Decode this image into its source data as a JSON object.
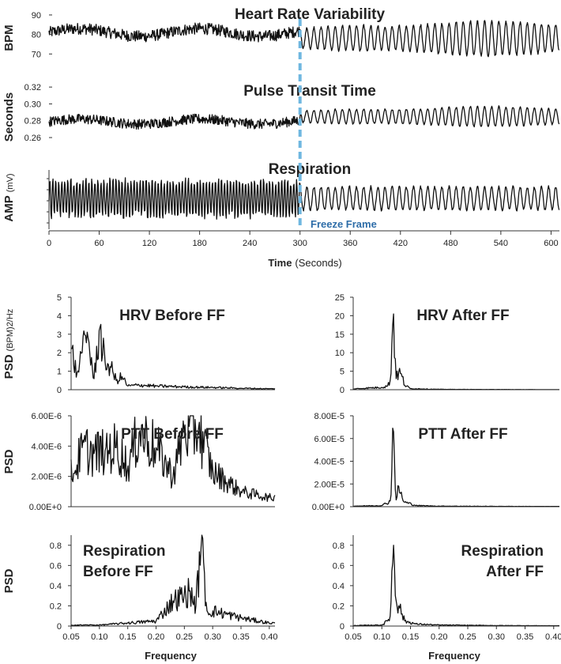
{
  "colors": {
    "trace": "#111111",
    "freeze_line": "#6fb7e0",
    "freeze_label": "#2e6da8",
    "axis": "#333333"
  },
  "time_axis": {
    "label_bold": "Time",
    "label_rest": "(Seconds)",
    "ticks": [
      "0",
      "60",
      "120",
      "180",
      "240",
      "300",
      "360",
      "420",
      "480",
      "540",
      "600"
    ],
    "range": [
      0,
      610
    ]
  },
  "freeze_frame": {
    "label": "Freeze Frame",
    "time": 300
  },
  "chart_data": [
    {
      "id": "hrv_time",
      "type": "line",
      "title": "Heart Rate Variability",
      "ylabel": "BPM",
      "ylim": [
        62,
        92
      ],
      "yticks": [
        "70",
        "80",
        "90"
      ],
      "ytick_values": [
        70,
        80,
        90
      ],
      "xlim": [
        0,
        610
      ],
      "before": {
        "mean": 81,
        "noise": 5,
        "drift_amp": 2
      },
      "after": {
        "mean": 78,
        "amp": 9,
        "period_s": 8.5
      }
    },
    {
      "id": "ptt_time",
      "type": "line",
      "title": "Pulse Transit Time",
      "ylabel": "Seconds",
      "ylim": [
        0.245,
        0.322
      ],
      "yticks": [
        "0.26",
        "0.28",
        "0.30",
        "0.32"
      ],
      "ytick_values": [
        0.26,
        0.28,
        0.3,
        0.32
      ],
      "xlim": [
        0,
        610
      ],
      "before": {
        "mean": 0.279,
        "noise": 0.01,
        "drift_amp": 0.003
      },
      "after": {
        "mean": 0.285,
        "amp": 0.012,
        "period_s": 8.5
      }
    },
    {
      "id": "resp_time",
      "type": "line",
      "title": "Respiration",
      "ylabel": "AMP",
      "ylabel_unit": "(mV)",
      "ylim": [
        -1.2,
        1.2
      ],
      "yticks": [],
      "xlim": [
        0,
        610
      ],
      "before": {
        "amp": 0.9,
        "period_s": 3.6
      },
      "after": {
        "amp": 0.5,
        "period_s": 8.5
      }
    },
    {
      "id": "psd_hrv_before",
      "type": "line",
      "title": "HRV Before FF",
      "ylabel": "PSD",
      "ylabel_unit": "(BPM)2/Hz",
      "xlabel": "",
      "xlim": [
        0.05,
        0.41
      ],
      "ylim": [
        0,
        5
      ],
      "yticks": [
        "0",
        "1",
        "2",
        "3",
        "4",
        "5"
      ],
      "ytick_values": [
        0,
        1,
        2,
        3,
        4,
        5
      ],
      "x": [
        0.05,
        0.06,
        0.07,
        0.08,
        0.09,
        0.1,
        0.11,
        0.12,
        0.13,
        0.14,
        0.15,
        0.17,
        0.2,
        0.25,
        0.3,
        0.35,
        0.4
      ],
      "y": [
        2.2,
        0.9,
        2.0,
        2.8,
        0.6,
        3.2,
        1.5,
        1.2,
        0.5,
        0.7,
        0.2,
        0.25,
        0.2,
        0.15,
        0.12,
        0.08,
        0.05
      ]
    },
    {
      "id": "psd_hrv_after",
      "type": "line",
      "title": "HRV After FF",
      "ylabel": "",
      "xlim": [
        0.05,
        0.41
      ],
      "ylim": [
        0,
        25
      ],
      "yticks": [
        "0",
        "5",
        "10",
        "15",
        "20",
        "25"
      ],
      "ytick_values": [
        0,
        5,
        10,
        15,
        20,
        25
      ],
      "x": [
        0.05,
        0.08,
        0.1,
        0.11,
        0.115,
        0.12,
        0.125,
        0.13,
        0.135,
        0.14,
        0.15,
        0.2,
        0.3,
        0.4
      ],
      "y": [
        0.2,
        0.5,
        0.6,
        1.0,
        2.5,
        20.5,
        3.0,
        4.8,
        3.5,
        1.2,
        0.3,
        0.1,
        0.05,
        0.02
      ]
    },
    {
      "id": "psd_ptt_before",
      "type": "line",
      "title": "PTT Before FF",
      "ylabel": "PSD",
      "xlim": [
        0.05,
        0.41
      ],
      "ylim": [
        0,
        6e-06
      ],
      "yticks": [
        "0.00E+0",
        "2.00E-6",
        "4.00E-6",
        "6.00E-6"
      ],
      "ytick_values": [
        0,
        2e-06,
        4e-06,
        6e-06
      ],
      "x": [
        0.055,
        0.07,
        0.09,
        0.11,
        0.13,
        0.15,
        0.17,
        0.2,
        0.23,
        0.25,
        0.275,
        0.3,
        0.35,
        0.4
      ],
      "y": [
        2.2e-06,
        3.9e-06,
        3.5e-06,
        3.7e-06,
        3.9e-06,
        2.7e-06,
        4.9e-06,
        3.9e-06,
        2e-06,
        5e-06,
        5.2e-06,
        2.3e-06,
        1e-06,
        6e-07
      ]
    },
    {
      "id": "psd_ptt_after",
      "type": "line",
      "title": "PTT After FF",
      "ylabel": "",
      "xlim": [
        0.05,
        0.41
      ],
      "ylim": [
        0,
        8e-05
      ],
      "yticks": [
        "0.00E+0",
        "2.00E-5",
        "4.00E-5",
        "6.00E-5",
        "8.00E-5"
      ],
      "ytick_values": [
        0,
        2e-05,
        4e-05,
        6e-05,
        8e-05
      ],
      "x": [
        0.05,
        0.1,
        0.115,
        0.12,
        0.125,
        0.13,
        0.135,
        0.14,
        0.16,
        0.2,
        0.3,
        0.4
      ],
      "y": [
        5e-07,
        1e-06,
        5e-06,
        6.6e-05,
        6e-06,
        1.8e-05,
        8e-06,
        4e-06,
        1e-06,
        5e-07,
        3e-07,
        2e-07
      ]
    },
    {
      "id": "psd_resp_before",
      "type": "line",
      "title_lines": [
        "Respiration",
        "Before FF"
      ],
      "ylabel": "PSD",
      "xlabel": "Frequency",
      "xlim": [
        0.05,
        0.41
      ],
      "ylim": [
        0,
        0.9
      ],
      "xticks": [
        "0.05",
        "0.10",
        "0.15",
        "0.20",
        "0.25",
        "0.30",
        "0.35",
        "0.40"
      ],
      "xtick_values": [
        0.05,
        0.1,
        0.15,
        0.2,
        0.25,
        0.3,
        0.35,
        0.4
      ],
      "yticks": [
        "0",
        "0.2",
        "0.4",
        "0.6",
        "0.8"
      ],
      "ytick_values": [
        0,
        0.2,
        0.4,
        0.6,
        0.8
      ],
      "x": [
        0.05,
        0.1,
        0.15,
        0.2,
        0.23,
        0.25,
        0.26,
        0.27,
        0.28,
        0.29,
        0.3,
        0.35,
        0.4
      ],
      "y": [
        0.01,
        0.01,
        0.03,
        0.05,
        0.25,
        0.3,
        0.35,
        0.2,
        0.78,
        0.15,
        0.15,
        0.08,
        0.03
      ]
    },
    {
      "id": "psd_resp_after",
      "type": "line",
      "title_lines": [
        "Respiration",
        "After FF"
      ],
      "ylabel": "",
      "xlabel": "Frequency",
      "xlim": [
        0.05,
        0.41
      ],
      "ylim": [
        0,
        0.9
      ],
      "xticks": [
        "0.05",
        "0.10",
        "0.15",
        "0.20",
        "0.25",
        "0.30",
        "0.35",
        "0.40"
      ],
      "xtick_values": [
        0.05,
        0.1,
        0.15,
        0.2,
        0.25,
        0.3,
        0.35,
        0.4
      ],
      "yticks": [
        "0",
        "0.2",
        "0.4",
        "0.6",
        "0.8"
      ],
      "ytick_values": [
        0,
        0.2,
        0.4,
        0.6,
        0.8
      ],
      "x": [
        0.05,
        0.1,
        0.11,
        0.115,
        0.12,
        0.125,
        0.13,
        0.135,
        0.14,
        0.16,
        0.2,
        0.3,
        0.4
      ],
      "y": [
        0.005,
        0.01,
        0.05,
        0.1,
        0.8,
        0.25,
        0.2,
        0.12,
        0.05,
        0.02,
        0.01,
        0.005,
        0.003
      ]
    }
  ]
}
